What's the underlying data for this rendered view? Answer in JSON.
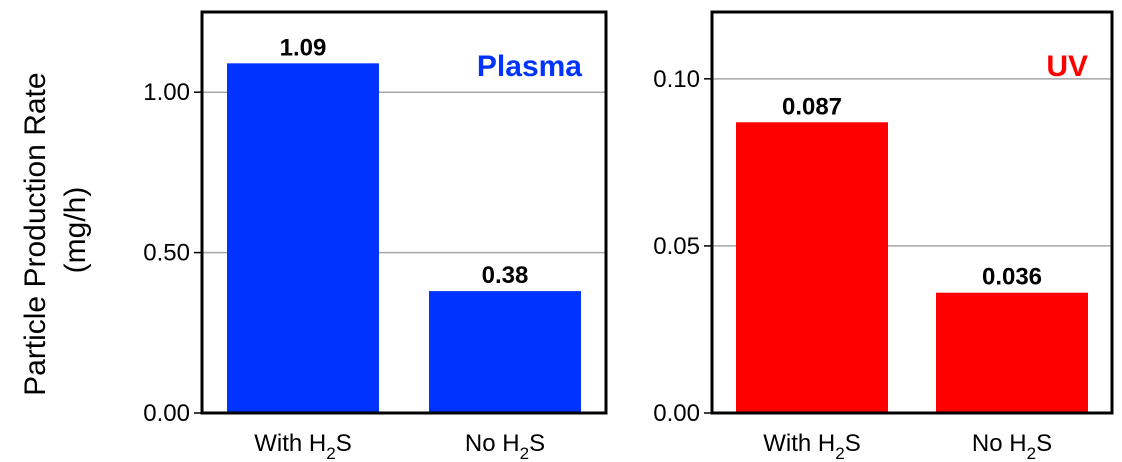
{
  "chart_data": [
    {
      "type": "bar",
      "title": "Plasma",
      "title_color": "#0033ff",
      "bar_color": "#0033ff",
      "ylabel_line1": "Particle Production Rate",
      "ylabel_line2": "(mg/h)",
      "categories": [
        {
          "base": "With H",
          "sub": "2",
          "tail": "S"
        },
        {
          "base": "No H",
          "sub": "2",
          "tail": "S"
        }
      ],
      "values": [
        1.09,
        0.38
      ],
      "value_labels": [
        "1.09",
        "0.38"
      ],
      "yticks": [
        0.0,
        0.5,
        1.0
      ],
      "ytick_labels": [
        "0.00",
        "0.50",
        "1.00"
      ],
      "ylim": [
        0,
        1.25
      ],
      "grid": true
    },
    {
      "type": "bar",
      "title": "UV",
      "title_color": "#ff0000",
      "bar_color": "#ff0000",
      "categories": [
        {
          "base": "With H",
          "sub": "2",
          "tail": "S"
        },
        {
          "base": "No H",
          "sub": "2",
          "tail": "S"
        }
      ],
      "values": [
        0.087,
        0.036
      ],
      "value_labels": [
        "0.087",
        "0.036"
      ],
      "yticks": [
        0.0,
        0.05,
        0.1
      ],
      "ytick_labels": [
        "0.00",
        "0.05",
        "0.10"
      ],
      "ylim": [
        0,
        0.12
      ],
      "grid": true
    }
  ]
}
